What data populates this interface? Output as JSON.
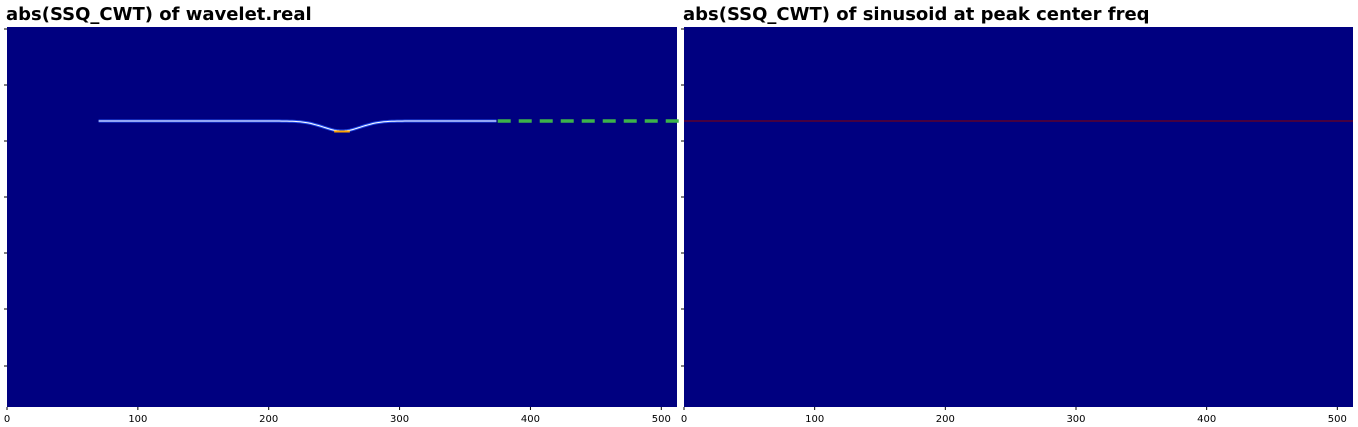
{
  "chart_data": [
    {
      "type": "heatmap",
      "title": "abs(SSQ_CWT) of wavelet.real",
      "xlim": [
        0,
        512
      ],
      "xticks": [
        "0",
        "100",
        "200",
        "300",
        "400",
        "500"
      ],
      "yticks_visible": false,
      "colormap": "jet",
      "background_color": "#000080",
      "ridge": {
        "x_start": 70,
        "x_end": 375,
        "dip_center_x": 256,
        "dip_halfwidth_x": 30,
        "color_edge": "#2a5cff",
        "color_core": "#ffffff",
        "color_peak": "#ffa500"
      },
      "marker_line": {
        "style": "dashed",
        "color": "#3cb34a",
        "x_start": 375,
        "x_end": 512
      }
    },
    {
      "type": "heatmap",
      "title": "abs(SSQ_CWT) of sinusoid at peak center freq",
      "xlim": [
        0,
        512
      ],
      "xticks": [
        "0",
        "100",
        "200",
        "300",
        "400",
        "500"
      ],
      "yticks_visible": false,
      "colormap": "jet",
      "background_color": "#000080",
      "ridge": {
        "x_start": 0,
        "x_end": 512,
        "color": "#8b0000"
      }
    }
  ]
}
